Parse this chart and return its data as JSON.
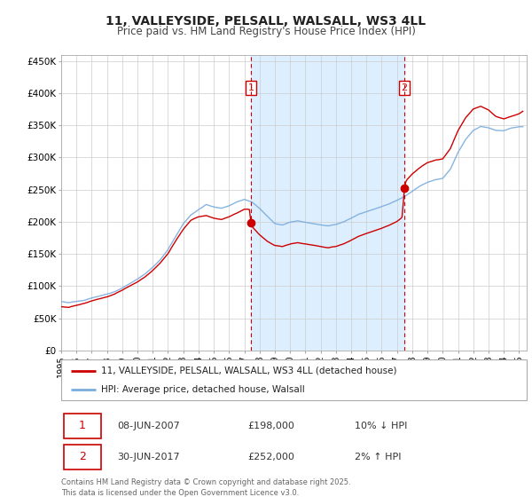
{
  "title": "11, VALLEYSIDE, PELSALL, WALSALL, WS3 4LL",
  "subtitle": "Price paid vs. HM Land Registry's House Price Index (HPI)",
  "ylim": [
    0,
    460000
  ],
  "yticks": [
    0,
    50000,
    100000,
    150000,
    200000,
    250000,
    300000,
    350000,
    400000,
    450000
  ],
  "ytick_labels": [
    "£0",
    "£50K",
    "£100K",
    "£150K",
    "£200K",
    "£250K",
    "£300K",
    "£350K",
    "£400K",
    "£450K"
  ],
  "xlim_start": 1995.0,
  "xlim_end": 2025.5,
  "sale1_date": 2007.44,
  "sale1_price": 198000,
  "sale2_date": 2017.49,
  "sale2_price": 252000,
  "sale1_date_str": "08-JUN-2007",
  "sale1_price_str": "£198,000",
  "sale1_hpi_str": "10% ↓ HPI",
  "sale2_date_str": "30-JUN-2017",
  "sale2_price_str": "£252,000",
  "sale2_hpi_str": "2% ↑ HPI",
  "color_property": "#cc0000",
  "color_hpi": "#7aacdc",
  "color_highlight": "#ddeeff",
  "legend_property": "11, VALLEYSIDE, PELSALL, WALSALL, WS3 4LL (detached house)",
  "legend_hpi": "HPI: Average price, detached house, Walsall",
  "footer": "Contains HM Land Registry data © Crown copyright and database right 2025.\nThis data is licensed under the Open Government Licence v3.0."
}
